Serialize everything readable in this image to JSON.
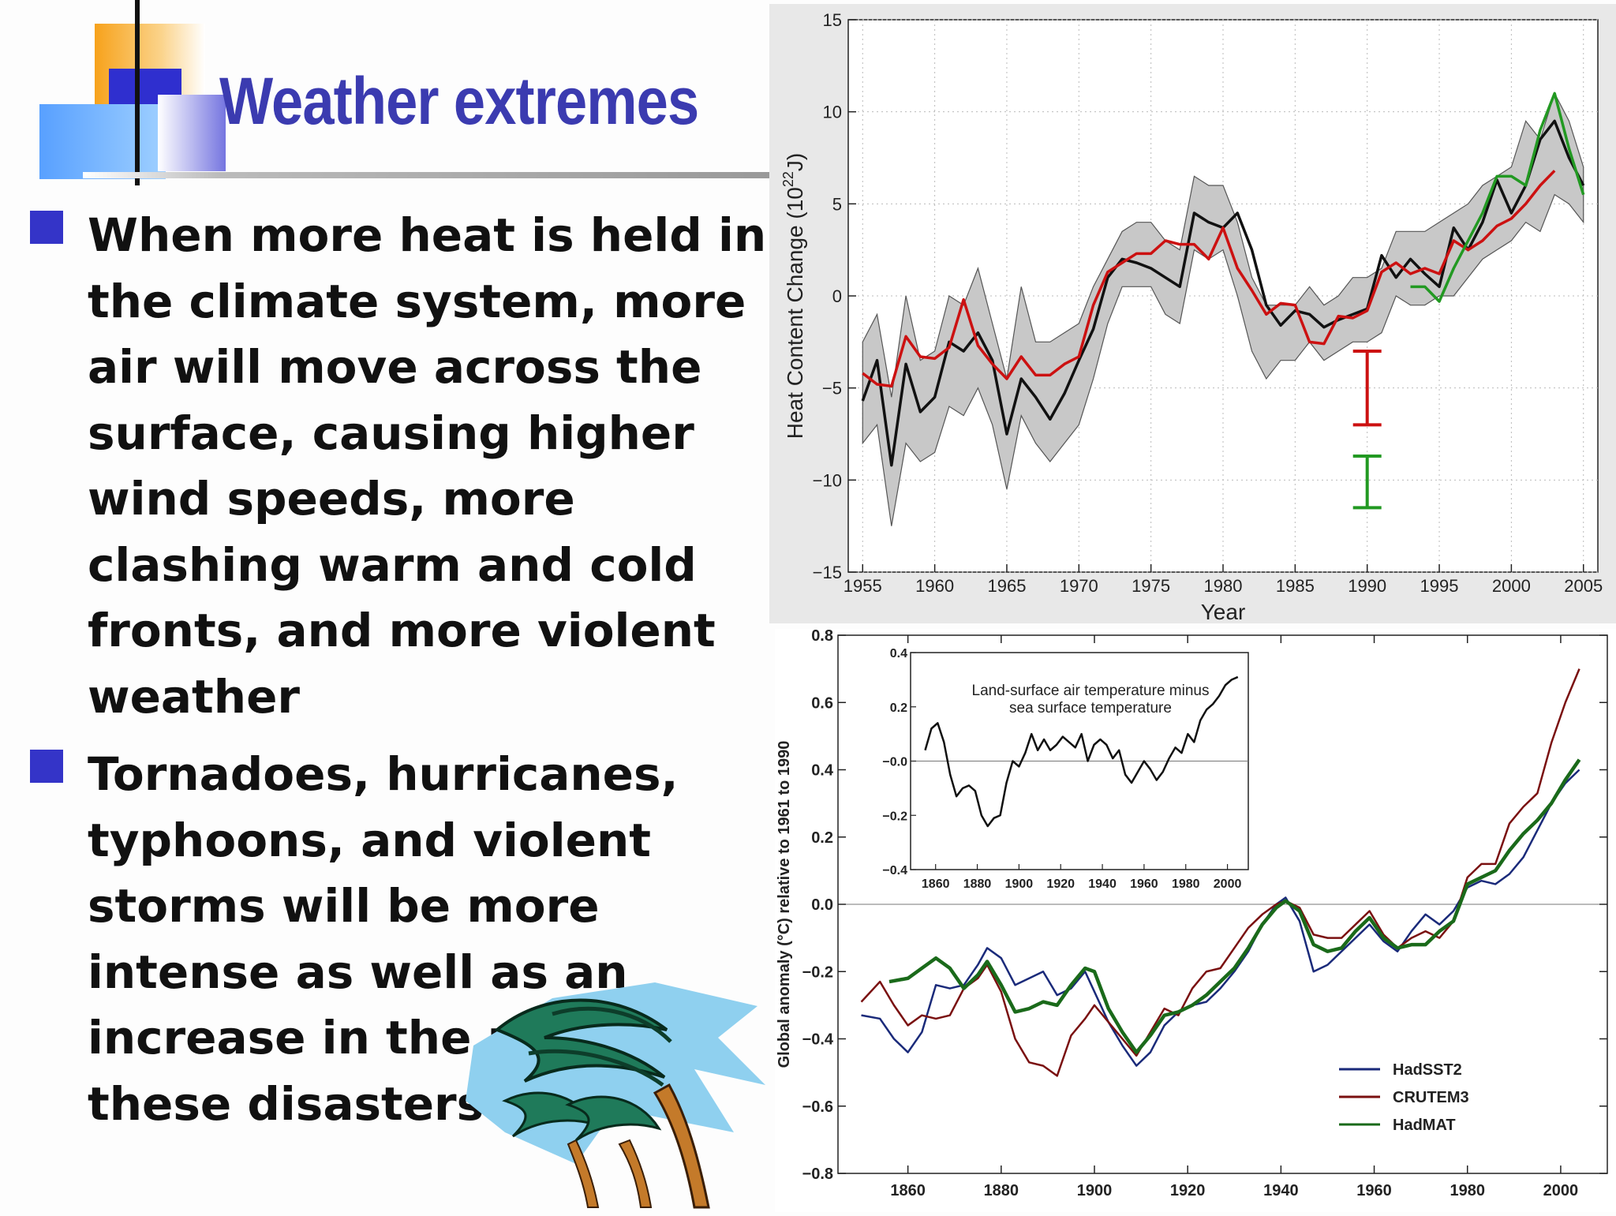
{
  "slide": {
    "title": "Weather extremes",
    "bullets": [
      {
        "lines": [
          "When more heat is held in",
          "the climate system, more",
          "air will move across the",
          "surface, causing higher",
          "wind speeds, more",
          "clashing warm and cold",
          "fronts, and more violent",
          "weather"
        ]
      },
      {
        "lines": [
          "Tornadoes, hurricanes,",
          "typhoons, and violent",
          "storms will be more",
          "intense as well as an",
          "increase in the nu",
          "these disasters"
        ]
      }
    ]
  },
  "colors": {
    "title": "#3b3bb0",
    "bullet": "#3434c8"
  },
  "chart_data": [
    {
      "type": "line",
      "xlabel": "Year",
      "ylabel": "Heat Content Change (10²²J)",
      "ylabel_parts": [
        "Heat Content Change (10",
        "22",
        "J)"
      ],
      "xlim": [
        1954,
        2006
      ],
      "ylim": [
        -15,
        15
      ],
      "xticks": [
        1955,
        1960,
        1965,
        1970,
        1975,
        1980,
        1985,
        1990,
        1995,
        2000,
        2005
      ],
      "yticks": [
        -15,
        -10,
        -5,
        0,
        5,
        10,
        15
      ],
      "grid": true,
      "band": {
        "x": [
          1955,
          1956,
          1957,
          1958,
          1959,
          1960,
          1961,
          1962,
          1963,
          1964,
          1965,
          1966,
          1967,
          1968,
          1969,
          1970,
          1971,
          1972,
          1973,
          1974,
          1975,
          1976,
          1977,
          1978,
          1979,
          1980,
          1981,
          1982,
          1983,
          1984,
          1985,
          1986,
          1987,
          1988,
          1989,
          1990,
          1991,
          1992,
          1993,
          1994,
          1995,
          1996,
          1997,
          1998,
          1999,
          2000,
          2001,
          2002,
          2003,
          2004,
          2005
        ],
        "upper": [
          -2.5,
          -1.0,
          -5.5,
          0,
          -3.5,
          -3,
          0,
          -0.5,
          1.5,
          -1.5,
          -4.5,
          0.5,
          -2.5,
          -2.5,
          -2.0,
          -1.5,
          0.5,
          2.0,
          3.5,
          4.0,
          4.0,
          3.0,
          2.5,
          6.5,
          6.0,
          6.0,
          4.0,
          1.0,
          -0.5,
          -0.5,
          -0.5,
          0.5,
          -0.5,
          0.0,
          1.0,
          1.0,
          1.5,
          3.5,
          3.5,
          3.5,
          4.0,
          4.5,
          5.0,
          6.0,
          6.5,
          7.0,
          9.5,
          8.5,
          11.0,
          9.5,
          7.0
        ],
        "lower": [
          -8,
          -7,
          -12.5,
          -8,
          -9,
          -8.5,
          -6,
          -6.5,
          -5,
          -7,
          -10.5,
          -6.5,
          -8,
          -9,
          -8,
          -7,
          -4.5,
          -1.5,
          0.5,
          0.5,
          0.5,
          -1,
          -1.5,
          2.5,
          2,
          2.5,
          0,
          -3,
          -4.5,
          -3.5,
          -3.5,
          -2.5,
          -3.5,
          -3,
          -2.5,
          -2.5,
          -2,
          0,
          -0.5,
          -0.5,
          0,
          0,
          1,
          2,
          2.5,
          3,
          4,
          3.5,
          5.5,
          5,
          4
        ]
      },
      "series": [
        {
          "name": "",
          "color": "#111111",
          "x": [
            1955,
            1956,
            1957,
            1958,
            1959,
            1960,
            1961,
            1962,
            1963,
            1964,
            1965,
            1966,
            1967,
            1968,
            1969,
            1970,
            1971,
            1972,
            1973,
            1974,
            1975,
            1976,
            1977,
            1978,
            1979,
            1980,
            1981,
            1982,
            1983,
            1984,
            1985,
            1986,
            1987,
            1988,
            1989,
            1990,
            1991,
            1992,
            1993,
            1994,
            1995,
            1996,
            1997,
            1998,
            1999,
            2000,
            2001,
            2002,
            2003,
            2004,
            2005
          ],
          "y": [
            -5.7,
            -3.5,
            -9.2,
            -3.7,
            -6.3,
            -5.5,
            -2.5,
            -3,
            -2,
            -3.5,
            -7.5,
            -4.5,
            -5.5,
            -6.7,
            -5.3,
            -3.5,
            -1.8,
            1,
            2,
            1.8,
            1.5,
            1,
            0.5,
            4.5,
            4,
            3.7,
            4.5,
            2.5,
            -0.5,
            -1.6,
            -0.8,
            -1,
            -1.7,
            -1.3,
            -1,
            -0.7,
            2.2,
            1,
            2,
            1.2,
            0.5,
            3.7,
            2.5,
            4,
            6.3,
            4.5,
            6,
            8.5,
            9.5,
            7.5,
            6
          ]
        },
        {
          "name": "",
          "color": "#cc1111",
          "x": [
            1955,
            1956,
            1957,
            1958,
            1959,
            1960,
            1961,
            1962,
            1963,
            1964,
            1965,
            1966,
            1967,
            1968,
            1969,
            1970,
            1971,
            1972,
            1973,
            1974,
            1975,
            1976,
            1977,
            1978,
            1979,
            1980,
            1981,
            1982,
            1983,
            1984,
            1985,
            1986,
            1987,
            1988,
            1989,
            1990,
            1991,
            1992,
            1993,
            1994,
            1995,
            1996,
            1997,
            1998,
            1999,
            2000,
            2001,
            2002,
            2003
          ],
          "y": [
            -4.2,
            -4.8,
            -4.9,
            -2.2,
            -3.3,
            -3.4,
            -2.8,
            -0.2,
            -2.7,
            -3.7,
            -4.5,
            -3.3,
            -4.3,
            -4.3,
            -3.7,
            -3.3,
            -0.5,
            1.3,
            1.8,
            2.3,
            2.3,
            3.0,
            2.8,
            2.8,
            2.0,
            3.7,
            1.5,
            0.3,
            -1.0,
            -0.4,
            -0.5,
            -2.5,
            -2.6,
            -1.1,
            -1.2,
            -0.8,
            1.3,
            1.8,
            1.2,
            1.5,
            1.2,
            3.0,
            2.5,
            3.0,
            3.8,
            4.2,
            5.0,
            6.0,
            6.8
          ]
        },
        {
          "name": "",
          "color": "#229922",
          "x": [
            1993,
            1994,
            1995,
            1996,
            1997,
            1998,
            1999,
            2000,
            2001,
            2002,
            2003,
            2004,
            2005
          ],
          "y": [
            0.5,
            0.5,
            -0.3,
            1.5,
            3.0,
            4.5,
            6.5,
            6.5,
            6.0,
            9.0,
            11.0,
            8.0,
            5.5
          ]
        }
      ],
      "error_bars": [
        {
          "x": 1990,
          "low": -7,
          "high": -3,
          "color": "#cc1111"
        },
        {
          "x": 1990,
          "low": -11.5,
          "high": -8.7,
          "color": "#229922"
        }
      ]
    },
    {
      "type": "line",
      "xlabel": "",
      "ylabel": "Global anomaly (°C)  relative to 1961 to 1990",
      "xlim": [
        1845,
        2010
      ],
      "ylim": [
        -0.8,
        0.8
      ],
      "xticks": [
        1860,
        1880,
        1900,
        1920,
        1940,
        1960,
        1980,
        2000
      ],
      "yticks": [
        -0.8,
        -0.6,
        -0.4,
        -0.2,
        0.0,
        0.2,
        0.4,
        0.6,
        0.8
      ],
      "ytick_labels": [
        "−0.8",
        "−0.6",
        "−0.4",
        "−0.2",
        "0.0",
        "0.2",
        "0.4",
        "0.6",
        "0.8"
      ],
      "legend": "bottom-right",
      "series": [
        {
          "name": "HadSST2",
          "color": "#1a2a7a",
          "x": [
            1850,
            1854,
            1857,
            1860,
            1863,
            1866,
            1869,
            1872,
            1875,
            1877,
            1880,
            1883,
            1886,
            1889,
            1892,
            1895,
            1898,
            1900,
            1903,
            1906,
            1909,
            1912,
            1915,
            1918,
            1921,
            1924,
            1927,
            1930,
            1933,
            1936,
            1939,
            1941,
            1944,
            1947,
            1950,
            1953,
            1956,
            1959,
            1962,
            1965,
            1968,
            1971,
            1974,
            1977,
            1980,
            1983,
            1986,
            1989,
            1992,
            1995,
            1998,
            2001,
            2004
          ],
          "y": [
            -0.33,
            -0.34,
            -0.4,
            -0.44,
            -0.38,
            -0.24,
            -0.25,
            -0.24,
            -0.18,
            -0.13,
            -0.16,
            -0.24,
            -0.22,
            -0.2,
            -0.27,
            -0.25,
            -0.2,
            -0.26,
            -0.35,
            -0.42,
            -0.48,
            -0.44,
            -0.36,
            -0.32,
            -0.3,
            -0.29,
            -0.25,
            -0.2,
            -0.14,
            -0.06,
            0.0,
            0.02,
            -0.05,
            -0.2,
            -0.18,
            -0.14,
            -0.1,
            -0.06,
            -0.11,
            -0.14,
            -0.08,
            -0.03,
            -0.06,
            -0.02,
            0.05,
            0.07,
            0.06,
            0.09,
            0.14,
            0.22,
            0.3,
            0.36,
            0.4
          ]
        },
        {
          "name": "CRUTEM3",
          "color": "#7a1010",
          "x": [
            1850,
            1854,
            1857,
            1860,
            1863,
            1866,
            1869,
            1872,
            1875,
            1877,
            1880,
            1883,
            1886,
            1889,
            1892,
            1895,
            1898,
            1900,
            1903,
            1906,
            1909,
            1912,
            1915,
            1918,
            1921,
            1924,
            1927,
            1930,
            1933,
            1936,
            1939,
            1941,
            1944,
            1947,
            1950,
            1953,
            1956,
            1959,
            1962,
            1965,
            1968,
            1971,
            1974,
            1977,
            1980,
            1983,
            1986,
            1989,
            1992,
            1995,
            1998,
            2001,
            2004
          ],
          "y": [
            -0.29,
            -0.23,
            -0.3,
            -0.36,
            -0.33,
            -0.34,
            -0.33,
            -0.25,
            -0.22,
            -0.18,
            -0.26,
            -0.4,
            -0.47,
            -0.48,
            -0.51,
            -0.39,
            -0.34,
            -0.3,
            -0.35,
            -0.4,
            -0.45,
            -0.38,
            -0.31,
            -0.33,
            -0.25,
            -0.2,
            -0.19,
            -0.13,
            -0.07,
            -0.03,
            0.0,
            0.01,
            -0.01,
            -0.09,
            -0.1,
            -0.1,
            -0.06,
            -0.02,
            -0.09,
            -0.13,
            -0.1,
            -0.08,
            -0.1,
            -0.05,
            0.08,
            0.12,
            0.12,
            0.24,
            0.29,
            0.33,
            0.48,
            0.6,
            0.7
          ]
        },
        {
          "name": "HadMAT",
          "color": "#1a6a1a",
          "x": [
            1856,
            1860,
            1863,
            1866,
            1869,
            1872,
            1875,
            1877,
            1880,
            1883,
            1886,
            1889,
            1892,
            1895,
            1898,
            1900,
            1903,
            1906,
            1909,
            1912,
            1915,
            1918,
            1921,
            1924,
            1927,
            1930,
            1933,
            1936,
            1939,
            1941,
            1944,
            1947,
            1950,
            1953,
            1956,
            1959,
            1962,
            1965,
            1968,
            1971,
            1974,
            1977,
            1980,
            1983,
            1986,
            1989,
            1992,
            1995,
            1998,
            2001,
            2004
          ],
          "y": [
            -0.23,
            -0.22,
            -0.19,
            -0.16,
            -0.19,
            -0.25,
            -0.21,
            -0.17,
            -0.24,
            -0.32,
            -0.31,
            -0.29,
            -0.3,
            -0.24,
            -0.19,
            -0.2,
            -0.31,
            -0.38,
            -0.44,
            -0.39,
            -0.33,
            -0.32,
            -0.3,
            -0.27,
            -0.23,
            -0.19,
            -0.13,
            -0.06,
            -0.01,
            0.01,
            -0.02,
            -0.12,
            -0.14,
            -0.13,
            -0.08,
            -0.04,
            -0.1,
            -0.13,
            -0.12,
            -0.12,
            -0.08,
            -0.05,
            0.06,
            0.08,
            0.1,
            0.16,
            0.21,
            0.25,
            0.3,
            0.37,
            0.43
          ]
        }
      ],
      "inset": {
        "type": "line",
        "title_lines": [
          "Land-surface air temperature minus",
          "sea surface temperature"
        ],
        "xlim": [
          1848,
          2010
        ],
        "ylim": [
          -0.4,
          0.4
        ],
        "xticks": [
          1860,
          1880,
          1900,
          1920,
          1940,
          1960,
          1980,
          2000
        ],
        "yticks": [
          -0.4,
          -0.2,
          0.0,
          0.2,
          0.4
        ],
        "ytick_labels": [
          "−0.4",
          "−0.2",
          "−0.0",
          "0.2",
          "0.4"
        ],
        "series": [
          {
            "name": "",
            "color": "#111111",
            "x": [
              1855,
              1858,
              1861,
              1864,
              1867,
              1870,
              1873,
              1876,
              1879,
              1882,
              1885,
              1888,
              1891,
              1894,
              1897,
              1900,
              1903,
              1906,
              1909,
              1912,
              1915,
              1918,
              1921,
              1924,
              1927,
              1930,
              1933,
              1936,
              1939,
              1942,
              1945,
              1948,
              1951,
              1954,
              1957,
              1960,
              1963,
              1966,
              1969,
              1972,
              1975,
              1978,
              1981,
              1984,
              1987,
              1990,
              1993,
              1996,
              1999,
              2002,
              2005
            ],
            "y": [
              0.04,
              0.12,
              0.14,
              0.07,
              -0.05,
              -0.13,
              -0.1,
              -0.09,
              -0.11,
              -0.2,
              -0.24,
              -0.21,
              -0.2,
              -0.08,
              0.0,
              -0.02,
              0.03,
              0.1,
              0.04,
              0.08,
              0.04,
              0.06,
              0.09,
              0.07,
              0.05,
              0.1,
              0.0,
              0.06,
              0.08,
              0.06,
              0.01,
              0.04,
              -0.05,
              -0.08,
              -0.04,
              0.0,
              -0.03,
              -0.07,
              -0.04,
              0.01,
              0.05,
              0.03,
              0.1,
              0.07,
              0.15,
              0.19,
              0.21,
              0.24,
              0.28,
              0.3,
              0.31
            ]
          }
        ]
      }
    }
  ]
}
